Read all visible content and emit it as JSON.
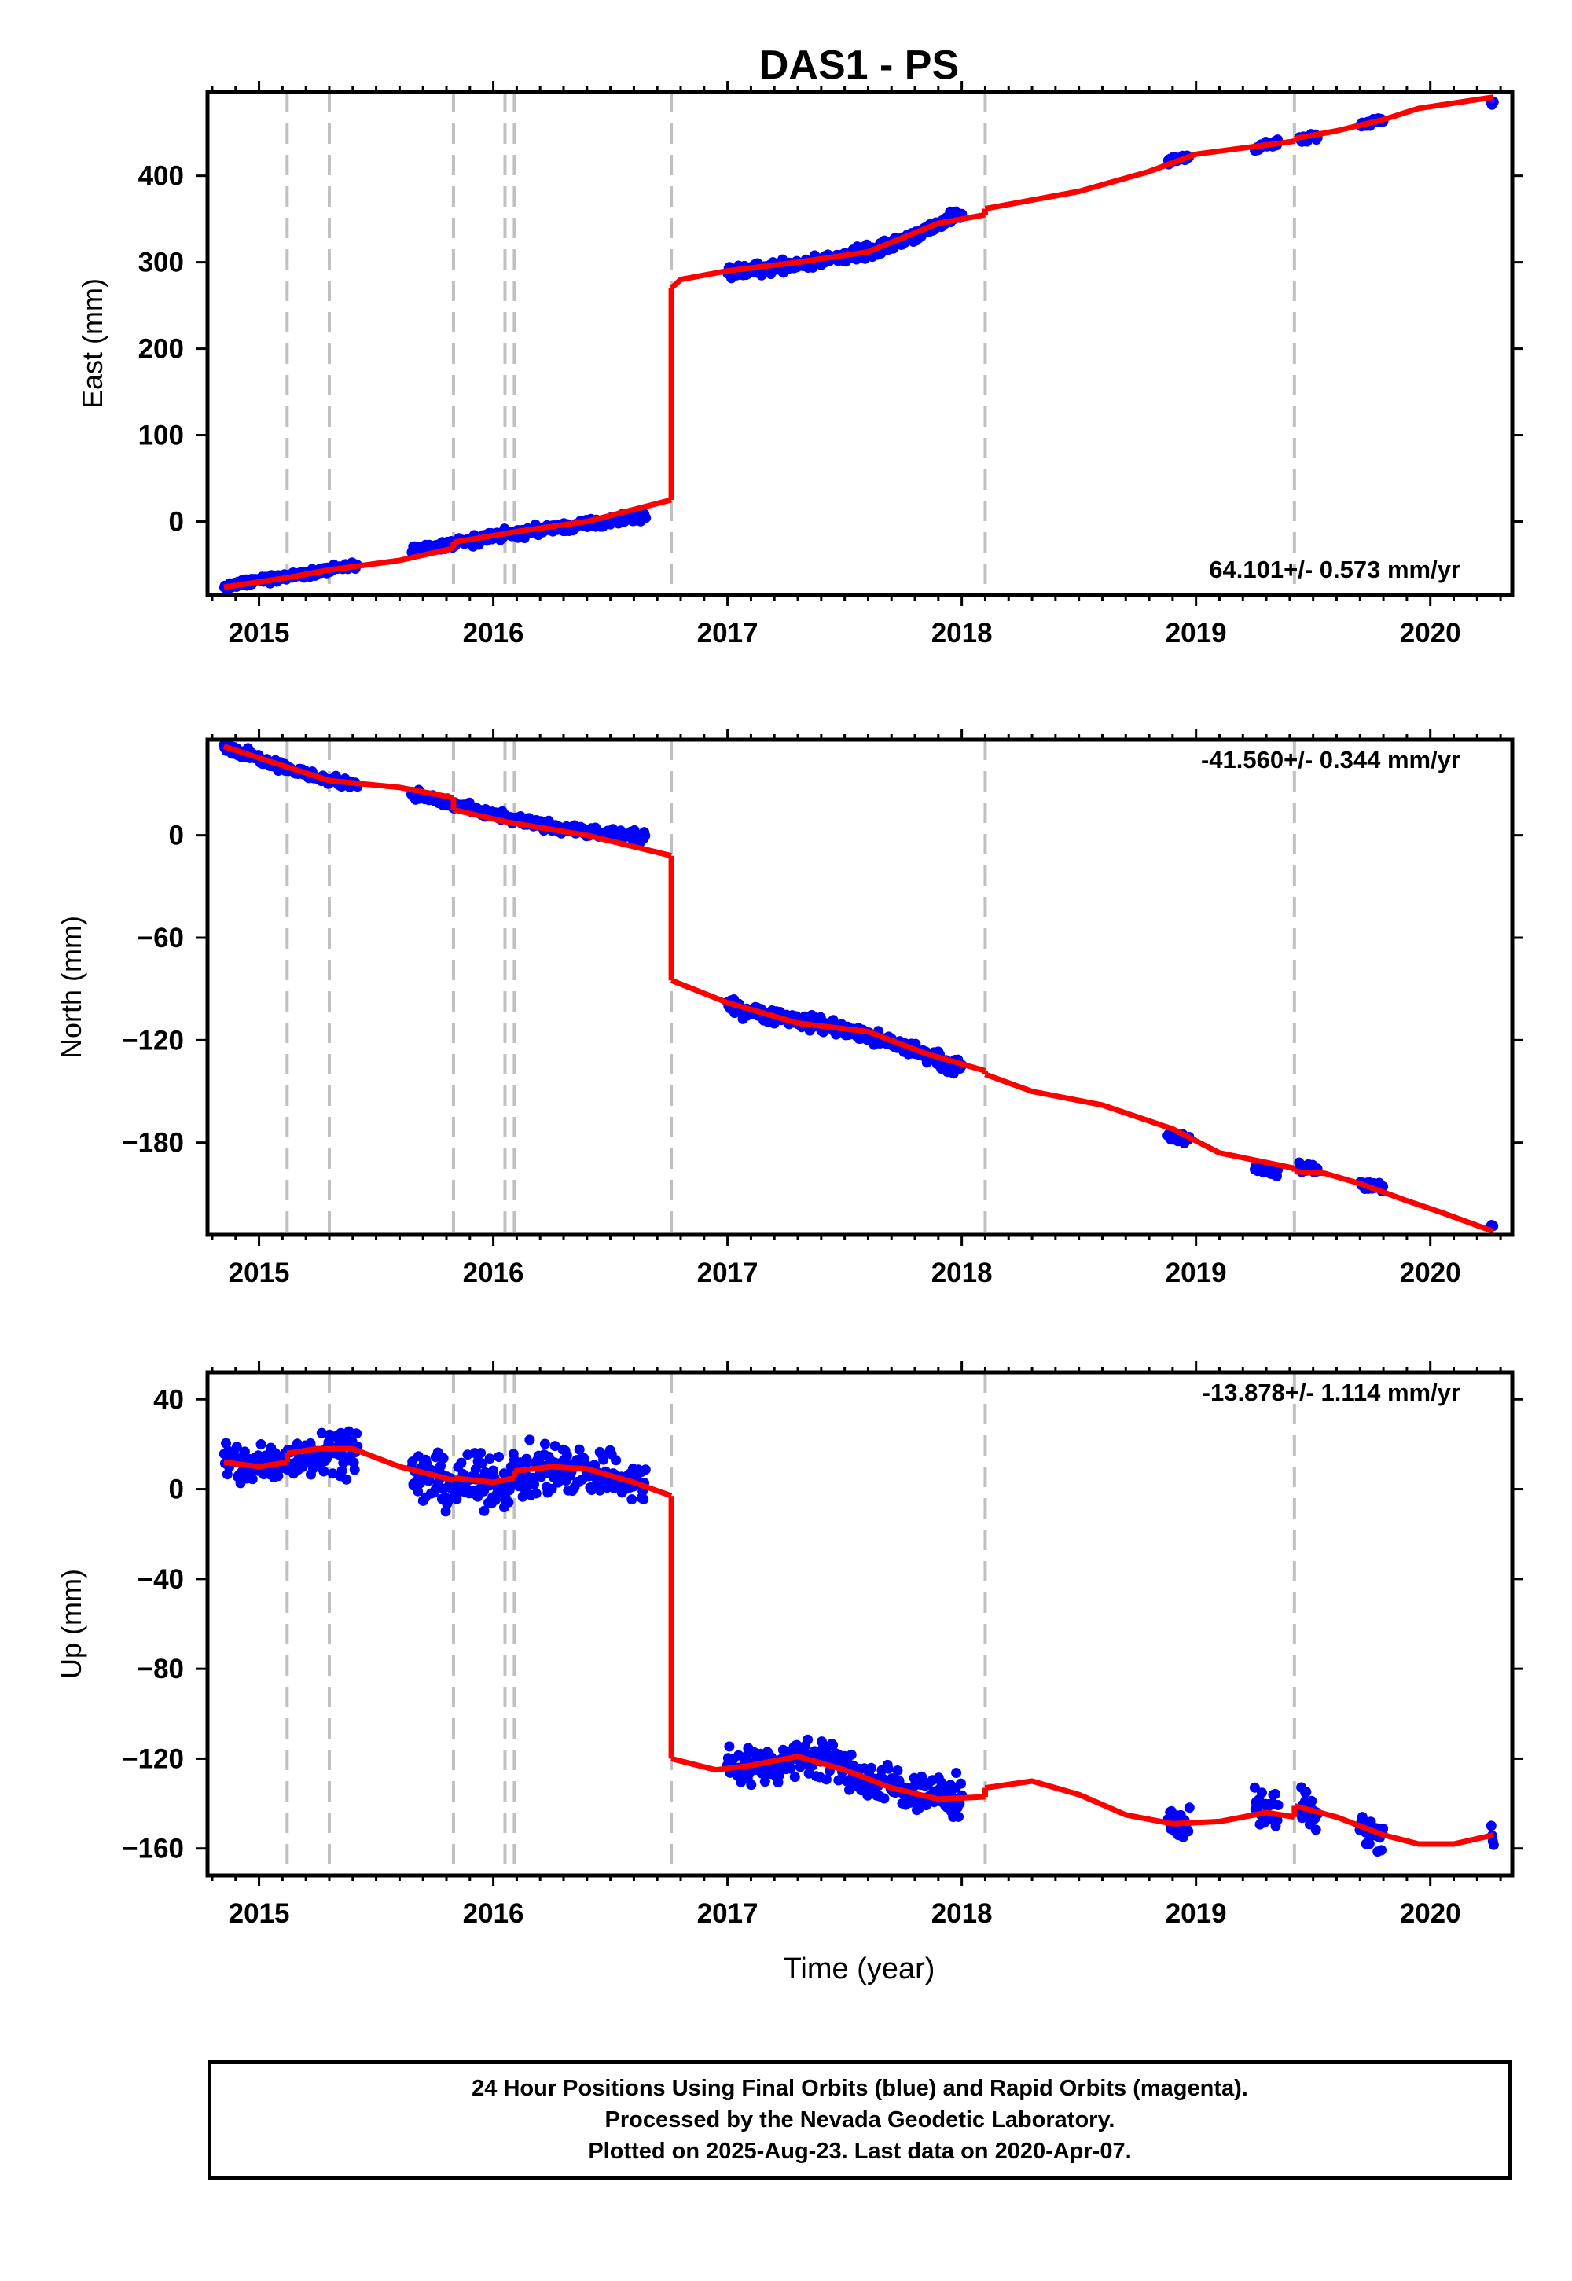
{
  "chart_data": {
    "type": "scatter",
    "title": "DAS1 - PS",
    "xlabel": "Time (year)",
    "x_ticks": [
      2015,
      2016,
      2017,
      2018,
      2019,
      2020
    ],
    "xlim": [
      2014.78,
      2020.35
    ],
    "event_lines": [
      2015.12,
      2015.3,
      2015.83,
      2016.05,
      2016.09,
      2016.76,
      2018.1,
      2019.42
    ],
    "colors": {
      "final_orbits": "#0000ff",
      "model": "#ff0000",
      "event_line": "#c0c0c0",
      "frame": "#000000"
    },
    "panels": [
      {
        "name": "east",
        "ylabel": "East (mm)",
        "ylim": [
          -85,
          497
        ],
        "y_ticks": [
          0,
          100,
          200,
          300,
          400
        ],
        "rate_label": "64.101+/- 0.573 mm/yr",
        "rate_position": "bottom-right",
        "series": [
          {
            "name": "24 Hour Positions Using Final Orbits",
            "type": "scatter",
            "segments": [
              {
                "x": [
                  2014.85,
                  2015.0,
                  2015.15,
                  2015.3,
                  2015.42
                ],
                "y": [
                  -76,
                  -68,
                  -62,
                  -55,
                  -51
                ],
                "jitter": 3
              },
              {
                "x": [
                  2015.65,
                  2015.85,
                  2016.0,
                  2016.2,
                  2016.45,
                  2016.65
                ],
                "y": [
                  -34,
                  -25,
                  -17,
                  -10,
                  -2,
                  7
                ],
                "jitter": 4
              },
              {
                "x": [
                  2017.0,
                  2017.25,
                  2017.45,
                  2017.65,
                  2017.85,
                  2018.0
                ],
                "y": [
                  288,
                  296,
                  304,
                  315,
                  338,
                  356
                ],
                "jitter": 5
              },
              {
                "x": [
                  2018.88,
                  2018.97
                ],
                "y": [
                  417,
                  422
                ],
                "jitter": 3
              },
              {
                "x": [
                  2019.25,
                  2019.35
                ],
                "y": [
                  433,
                  438
                ],
                "jitter": 3
              },
              {
                "x": [
                  2019.44,
                  2019.52
                ],
                "y": [
                  440,
                  446
                ],
                "jitter": 3
              },
              {
                "x": [
                  2019.7,
                  2019.8
                ],
                "y": [
                  458,
                  468
                ],
                "jitter": 3
              },
              {
                "x": [
                  2020.26,
                  2020.27
                ],
                "y": [
                  484,
                  486
                ],
                "jitter": 2
              }
            ]
          },
          {
            "name": "model",
            "type": "line",
            "segments": [
              {
                "x": [
                  2014.85,
                  2015.12,
                  2015.3,
                  2015.6,
                  2015.83
                ],
                "y": [
                  -76,
                  -65,
                  -56,
                  -45,
                  -31
                ]
              },
              {
                "x": [
                  2015.83,
                  2016.05,
                  2016.09,
                  2016.4,
                  2016.76
                ],
                "y": [
                  -24,
                  -14,
                  -12,
                  0,
                  25
                ]
              },
              {
                "x": [
                  2016.76,
                  2016.8,
                  2017.0,
                  2017.3,
                  2017.6,
                  2017.9,
                  2018.1
                ],
                "y": [
                  270,
                  280,
                  290,
                  300,
                  312,
                  345,
                  355
                ]
              },
              {
                "x": [
                  2018.1,
                  2018.5,
                  2018.8,
                  2019.0,
                  2019.42
                ],
                "y": [
                  362,
                  382,
                  405,
                  425,
                  440
                ]
              },
              {
                "x": [
                  2019.42,
                  2019.6,
                  2019.8,
                  2019.95,
                  2020.27
                ],
                "y": [
                  443,
                  452,
                  465,
                  478,
                  491
                ]
              }
            ]
          }
        ]
      },
      {
        "name": "north",
        "ylabel": "North (mm)",
        "ylim": [
          -234,
          56
        ],
        "y_ticks": [
          0,
          -60,
          -120,
          -180
        ],
        "rate_label": "-41.560+/- 0.344 mm/yr",
        "rate_position": "top-right",
        "series": [
          {
            "name": "24 Hour Positions Using Final Orbits",
            "type": "scatter",
            "segments": [
              {
                "x": [
                  2014.85,
                  2015.0,
                  2015.15,
                  2015.3,
                  2015.42
                ],
                "y": [
                  52,
                  45,
                  38,
                  32,
                  30
                ],
                "jitter": 2
              },
              {
                "x": [
                  2015.65,
                  2015.85,
                  2016.05,
                  2016.25,
                  2016.45,
                  2016.65
                ],
                "y": [
                  25,
                  17,
                  10,
                  5,
                  1,
                  -1
                ],
                "jitter": 2
              },
              {
                "x": [
                  2017.0,
                  2017.2,
                  2017.45,
                  2017.6,
                  2017.8,
                  2018.0
                ],
                "y": [
                  -100,
                  -106,
                  -112,
                  -118,
                  -126,
                  -137
                ],
                "jitter": 3
              },
              {
                "x": [
                  2018.88,
                  2018.97
                ],
                "y": [
                  -176,
                  -179
                ],
                "jitter": 2
              },
              {
                "x": [
                  2019.25,
                  2019.35
                ],
                "y": [
                  -194,
                  -197
                ],
                "jitter": 2
              },
              {
                "x": [
                  2019.44,
                  2019.52
                ],
                "y": [
                  -194,
                  -196
                ],
                "jitter": 2
              },
              {
                "x": [
                  2019.7,
                  2019.8
                ],
                "y": [
                  -204,
                  -206
                ],
                "jitter": 2
              },
              {
                "x": [
                  2020.26,
                  2020.27
                ],
                "y": [
                  -229,
                  -229
                ],
                "jitter": 1
              }
            ]
          },
          {
            "name": "model",
            "type": "line",
            "segments": [
              {
                "x": [
                  2014.85,
                  2015.12,
                  2015.3,
                  2015.6,
                  2015.83
                ],
                "y": [
                  52,
                  40,
                  32,
                  28,
                  22
                ]
              },
              {
                "x": [
                  2015.83,
                  2016.05,
                  2016.09,
                  2016.4,
                  2016.76
                ],
                "y": [
                  15,
                  8,
                  7,
                  0,
                  -12
                ]
              },
              {
                "x": [
                  2016.76,
                  2017.0,
                  2017.3,
                  2017.6,
                  2017.85,
                  2018.1
                ],
                "y": [
                  -85,
                  -98,
                  -110,
                  -115,
                  -128,
                  -138
                ]
              },
              {
                "x": [
                  2018.1,
                  2018.3,
                  2018.6,
                  2018.9,
                  2019.1,
                  2019.42
                ],
                "y": [
                  -140,
                  -150,
                  -158,
                  -172,
                  -186,
                  -195
                ]
              },
              {
                "x": [
                  2019.42,
                  2019.55,
                  2019.7,
                  2019.9,
                  2020.05,
                  2020.27
                ],
                "y": [
                  -197,
                  -198,
                  -204,
                  -214,
                  -221,
                  -232
                ]
              }
            ]
          }
        ]
      },
      {
        "name": "up",
        "ylabel": "Up (mm)",
        "ylim": [
          -172,
          52
        ],
        "y_ticks": [
          40,
          0,
          -40,
          -80,
          -120,
          -160
        ],
        "rate_label": "-13.878+/- 1.114 mm/yr",
        "rate_position": "top-right",
        "series": [
          {
            "name": "24 Hour Positions Using Final Orbits",
            "type": "scatter",
            "segments": [
              {
                "x": [
                  2014.85,
                  2015.0,
                  2015.15,
                  2015.3,
                  2015.42
                ],
                "y": [
                  12,
                  10,
                  14,
                  18,
                  18
                ],
                "jitter": 7
              },
              {
                "x": [
                  2015.65,
                  2015.85,
                  2016.05,
                  2016.25,
                  2016.45,
                  2016.65
                ],
                "y": [
                  6,
                  2,
                  4,
                  10,
                  8,
                  2
                ],
                "jitter": 8
              },
              {
                "x": [
                  2017.0,
                  2017.2,
                  2017.4,
                  2017.55,
                  2017.75,
                  2018.0
                ],
                "y": [
                  -124,
                  -122,
                  -118,
                  -128,
                  -134,
                  -138
                ],
                "jitter": 6
              },
              {
                "x": [
                  2018.88,
                  2018.97
                ],
                "y": [
                  -147,
                  -150
                ],
                "jitter": 6
              },
              {
                "x": [
                  2019.25,
                  2019.35
                ],
                "y": [
                  -140,
                  -144
                ],
                "jitter": 6
              },
              {
                "x": [
                  2019.44,
                  2019.52
                ],
                "y": [
                  -140,
                  -146
                ],
                "jitter": 6
              },
              {
                "x": [
                  2019.7,
                  2019.8
                ],
                "y": [
                  -150,
                  -156
                ],
                "jitter": 6
              },
              {
                "x": [
                  2020.26,
                  2020.27
                ],
                "y": [
                  -155,
                  -157
                ],
                "jitter": 4
              }
            ]
          },
          {
            "name": "model",
            "type": "line",
            "segments": [
              {
                "x": [
                  2014.85,
                  2015.0,
                  2015.12
                ],
                "y": [
                  12,
                  10,
                  12
                ]
              },
              {
                "x": [
                  2015.12,
                  2015.25,
                  2015.4,
                  2015.6,
                  2015.83
                ],
                "y": [
                  16,
                  18,
                  18,
                  10,
                  4
                ]
              },
              {
                "x": [
                  2015.83,
                  2016.0,
                  2016.09
                ],
                "y": [
                  5,
                  3,
                  5
                ]
              },
              {
                "x": [
                  2016.09,
                  2016.25,
                  2016.4,
                  2016.6,
                  2016.76
                ],
                "y": [
                  8,
                  10,
                  9,
                  3,
                  -3
                ]
              },
              {
                "x": [
                  2016.76,
                  2016.95,
                  2017.1,
                  2017.3,
                  2017.5,
                  2017.7,
                  2017.9,
                  2018.1
                ],
                "y": [
                  -120,
                  -125,
                  -123,
                  -119,
                  -125,
                  -133,
                  -138,
                  -137
                ]
              },
              {
                "x": [
                  2018.1,
                  2018.3,
                  2018.5,
                  2018.7,
                  2018.9,
                  2019.1,
                  2019.3,
                  2019.42
                ],
                "y": [
                  -133,
                  -130,
                  -136,
                  -145,
                  -149,
                  -148,
                  -144,
                  -146
                ]
              },
              {
                "x": [
                  2019.42,
                  2019.6,
                  2019.8,
                  2019.95,
                  2020.1,
                  2020.27
                ],
                "y": [
                  -141,
                  -146,
                  -154,
                  -158,
                  -158,
                  -154
                ]
              }
            ]
          }
        ]
      }
    ]
  },
  "footer": {
    "line1": "24 Hour Positions Using Final Orbits (blue) and Rapid Orbits (magenta).",
    "line2": "Processed by the Nevada Geodetic Laboratory.",
    "line3": "Plotted on 2025-Aug-23. Last data on 2020-Apr-07."
  }
}
